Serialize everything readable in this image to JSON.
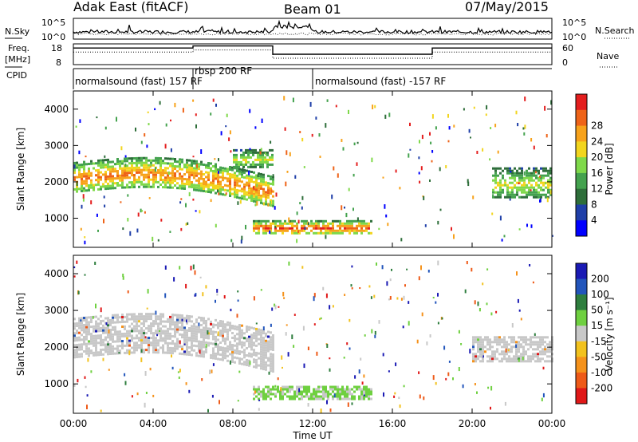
{
  "header": {
    "station": "Adak East (fitACF)",
    "beam": "Beam 01",
    "date": "07/May/2015"
  },
  "nsky_panel": {
    "left_label": "N.Sky",
    "right_label": "N.Search",
    "ticks_left": [
      "10^5",
      "10^0"
    ],
    "ticks_right": [
      "10^5",
      "10^0"
    ]
  },
  "freq_panel": {
    "left_label_top": "Freq.",
    "left_label_unit": "[MHz]",
    "right_label": "Nave",
    "ticks_left": [
      "18",
      "8"
    ],
    "ticks_right": [
      "60",
      "0"
    ],
    "frequency_steps": [
      {
        "start_h": 0,
        "end_h": 6,
        "freq_mhz": 16
      },
      {
        "start_h": 6,
        "end_h": 10,
        "freq_mhz": 17
      },
      {
        "start_h": 10,
        "end_h": 18,
        "freq_mhz": 13
      },
      {
        "start_h": 18,
        "end_h": 24,
        "freq_mhz": 16
      }
    ]
  },
  "cpid_panel": {
    "label": "CPID",
    "segments": [
      {
        "start_h": 0,
        "end_h": 6,
        "text": "normalsound (fast) 157 RF"
      },
      {
        "start_h": 6,
        "end_h": 12,
        "text": "rbsp 200 RF"
      },
      {
        "start_h": 12,
        "end_h": 24,
        "text": "normalsound (fast) -157 RF"
      }
    ]
  },
  "x_axis": {
    "ticks": [
      "00:00",
      "04:00",
      "08:00",
      "12:00",
      "16:00",
      "20:00",
      "00:00"
    ],
    "label": "Time UT"
  },
  "power_panel": {
    "ylabel": "Slant Range [km]",
    "yticks": [
      "1000",
      "2000",
      "3000",
      "4000"
    ],
    "colorbar_label": "Power [dB]",
    "colorbar_ticks": [
      "4",
      "8",
      "12",
      "16",
      "20",
      "24",
      "28"
    ],
    "colors": [
      "#0000ff",
      "#1f3fa8",
      "#2e6e3a",
      "#44a24e",
      "#7fd94a",
      "#f2d51e",
      "#f7a21b",
      "#ee6318",
      "#e41e1e"
    ]
  },
  "velocity_panel": {
    "ylabel": "Slant Range [km]",
    "yticks": [
      "1000",
      "2000",
      "3000",
      "4000"
    ],
    "colorbar_label": "Velocity [m s⁻¹]",
    "colorbar_ticks": [
      "200",
      "100",
      "50",
      "15",
      "-15",
      "-50",
      "-100",
      "-200"
    ],
    "colors": [
      "#1a1ab4",
      "#2255bb",
      "#2e7e3e",
      "#6fd040",
      "#c8c8c8",
      "#f2c21e",
      "#f5921b",
      "#ee5a18",
      "#e01818"
    ]
  },
  "chart_data": {
    "type": "heatmap",
    "x_range_hours": [
      0,
      24
    ],
    "y_range_km": [
      200,
      4500
    ],
    "power_features": [
      {
        "start_h": 0,
        "end_h": 10,
        "range_km": [
          1750,
          2550
        ],
        "power_db": 20
      },
      {
        "start_h": 8,
        "end_h": 10,
        "range_km": [
          2400,
          2900
        ],
        "power_db": 14
      },
      {
        "start_h": 9,
        "end_h": 15,
        "range_km": [
          600,
          950
        ],
        "power_db": 22
      },
      {
        "start_h": 21,
        "end_h": 24,
        "range_km": [
          1600,
          2400
        ],
        "power_db": 14
      }
    ],
    "velocity_features": [
      {
        "start_h": 0,
        "end_h": 10,
        "range_km": [
          1750,
          2800
        ],
        "velocity_ms": 0
      },
      {
        "start_h": 9,
        "end_h": 15,
        "range_km": [
          600,
          950
        ],
        "velocity_ms": 30
      },
      {
        "start_h": 20,
        "end_h": 24,
        "range_km": [
          1600,
          2300
        ],
        "velocity_ms": 0
      }
    ]
  }
}
